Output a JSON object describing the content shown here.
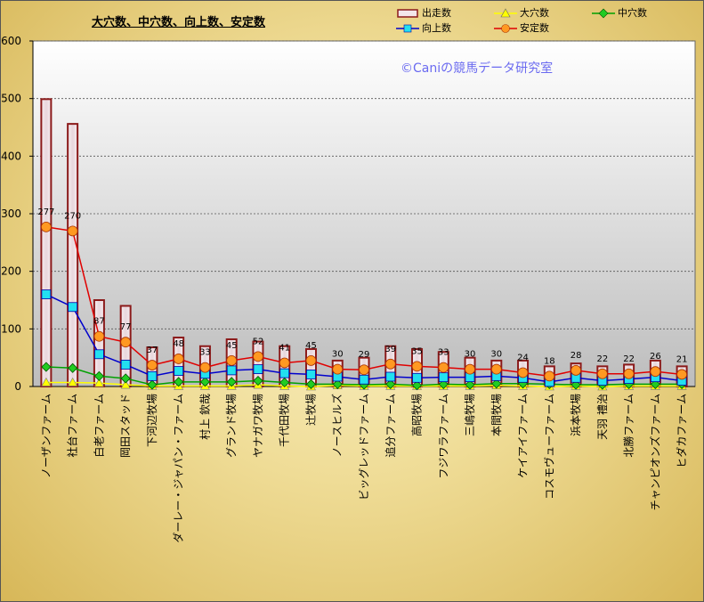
{
  "chart_data": {
    "type": "bar",
    "title": "大穴数、中穴数、向上数、安定数",
    "watermark": "©Caniの競馬データ研究室",
    "ylim": [
      0,
      600
    ],
    "yticks": [
      0,
      100,
      200,
      300,
      400,
      500,
      600
    ],
    "grid": true,
    "legend": "top-right",
    "categories": [
      "ノーザンファーム",
      "社台ファーム",
      "白老ファーム",
      "岡田スタッド",
      "下河辺牧場",
      "ダーレー・ジャパン・ファーム",
      "村上 欽哉",
      "グランド牧場",
      "ヤナガワ牧場",
      "千代田牧場",
      "辻牧場",
      "ノースヒルズ",
      "ビッグレッドファーム",
      "追分ファーム",
      "高昭牧場",
      "フジワラファーム",
      "三嶋牧場",
      "本間牧場",
      "ケイアイファーム",
      "コスモヴューファーム",
      "浜本牧場",
      "天羽 禮治",
      "北勝ファーム",
      "チャンピオンズファーム",
      "ヒダカファーム"
    ],
    "series": [
      {
        "name": "出走数",
        "kind": "bar",
        "color": "#8b1a1a",
        "values": [
          499,
          456,
          150,
          140,
          68,
          85,
          70,
          82,
          78,
          70,
          65,
          45,
          50,
          70,
          65,
          60,
          50,
          45,
          45,
          35,
          40,
          35,
          38,
          45,
          35
        ]
      },
      {
        "name": "大穴数",
        "kind": "line",
        "marker": "triangle",
        "color": "#ffff00",
        "values": [
          7,
          7,
          6,
          3,
          1,
          1,
          1,
          1,
          3,
          1,
          0,
          2,
          1,
          1,
          1,
          1,
          1,
          2,
          1,
          0,
          1,
          0,
          1,
          1,
          1
        ]
      },
      {
        "name": "中穴数",
        "kind": "line",
        "marker": "diamond",
        "color": "#00a000",
        "values": [
          34,
          32,
          18,
          14,
          3,
          8,
          8,
          8,
          10,
          7,
          4,
          4,
          3,
          4,
          2,
          4,
          3,
          5,
          5,
          4,
          3,
          3,
          4,
          4,
          4
        ]
      },
      {
        "name": "向上数",
        "kind": "line",
        "marker": "square",
        "color": "#0000cc",
        "values": [
          160,
          138,
          56,
          38,
          18,
          27,
          22,
          28,
          30,
          23,
          21,
          17,
          12,
          17,
          15,
          16,
          16,
          18,
          15,
          8,
          15,
          10,
          13,
          16,
          10
        ]
      },
      {
        "name": "安定数",
        "kind": "line",
        "marker": "circle",
        "color": "#e00000",
        "values": [
          277,
          270,
          87,
          77,
          37,
          48,
          33,
          45,
          52,
          41,
          45,
          30,
          29,
          39,
          35,
          33,
          30,
          30,
          24,
          18,
          28,
          22,
          22,
          26,
          21
        ]
      }
    ],
    "data_labels": [
      277,
      270,
      87,
      77,
      37,
      48,
      33,
      45,
      52,
      41,
      45,
      30,
      29,
      39,
      35,
      33,
      30,
      30,
      24,
      18,
      28,
      22,
      22,
      26,
      21
    ]
  }
}
